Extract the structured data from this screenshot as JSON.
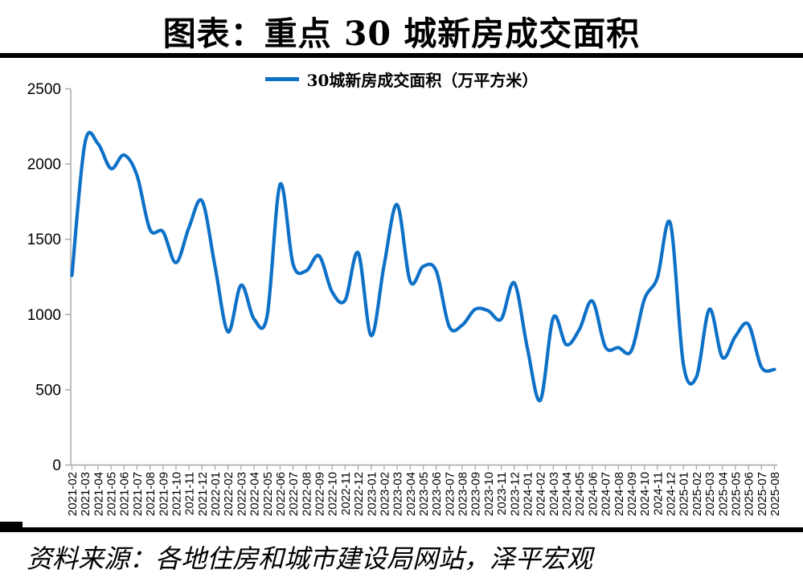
{
  "page": {
    "title": "图表：重点 30 城新房成交面积",
    "source_note": "资料来源：各地住房和城市建设局网站，泽平宏观"
  },
  "legend": {
    "label": "30城新房成交面积（万平方米）"
  },
  "colors": {
    "line": "#0e71c8",
    "axis": "#a6a6a6",
    "text": "#000000",
    "divider": "#000000"
  },
  "chart_data": {
    "type": "line",
    "title": "图表：重点 30 城新房成交面积",
    "unit": "万平方米",
    "grid": false,
    "legend_position": "top",
    "line_style": "smooth",
    "ylim": [
      0,
      2500
    ],
    "yticks": [
      0,
      500,
      1000,
      1500,
      2000,
      2500
    ],
    "xlabel": "",
    "ylabel": "",
    "x": [
      "2021-02",
      "2021-03",
      "2021-04",
      "2021-05",
      "2021-06",
      "2021-07",
      "2021-08",
      "2021-09",
      "2021-10",
      "2021-11",
      "2021-12",
      "2022-01",
      "2022-02",
      "2022-03",
      "2022-04",
      "2022-05",
      "2022-06",
      "2022-07",
      "2022-08",
      "2022-09",
      "2022-10",
      "2022-11",
      "2022-12",
      "2023-01",
      "2023-02",
      "2023-03",
      "2023-04",
      "2023-05",
      "2023-06",
      "2023-07",
      "2023-08",
      "2023-09",
      "2023-10",
      "2023-11",
      "2023-12",
      "2024-01",
      "2024-02",
      "2024-03",
      "2024-04",
      "2024-05",
      "2024-06",
      "2024-07",
      "2024-08",
      "2024-09",
      "2024-10",
      "2024-11",
      "2024-12",
      "2025-01",
      "2025-02",
      "2025-03",
      "2025-04",
      "2025-05",
      "2025-06",
      "2025-07",
      "2025-08"
    ],
    "series": [
      {
        "name": "30城新房成交面积（万平方米）",
        "values": [
          1260,
          2140,
          2135,
          1970,
          2060,
          1925,
          1565,
          1550,
          1345,
          1580,
          1755,
          1320,
          885,
          1195,
          970,
          990,
          1865,
          1335,
          1290,
          1390,
          1150,
          1095,
          1410,
          860,
          1330,
          1730,
          1220,
          1320,
          1290,
          920,
          930,
          1035,
          1025,
          970,
          1210,
          780,
          430,
          980,
          800,
          900,
          1090,
          785,
          780,
          760,
          1100,
          1245,
          1605,
          670,
          585,
          1035,
          715,
          855,
          935,
          650,
          635
        ]
      }
    ]
  }
}
